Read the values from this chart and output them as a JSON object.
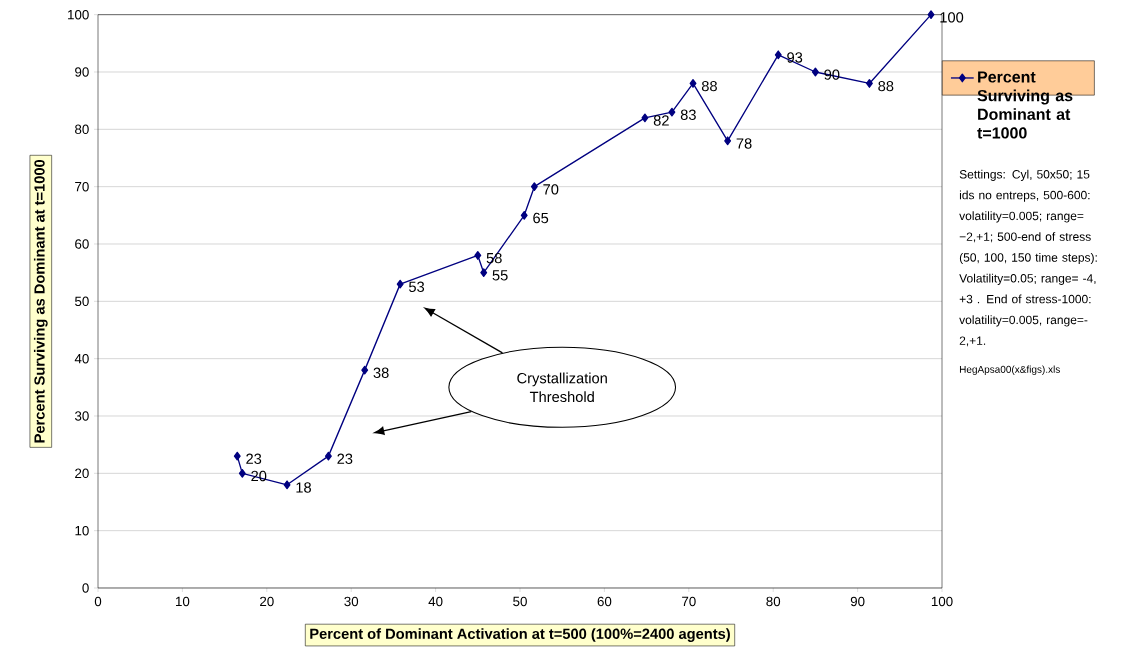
{
  "chart_data": {
    "type": "line",
    "xlabel": "Percent of Dominant Activation at t=500 (100%=2400 agents)",
    "ylabel": "Percent Surviving as  Dominant at t=1000",
    "x": [
      16.5,
      17.1,
      22.4,
      27.3,
      31.6,
      35.8,
      45.0,
      45.7,
      50.5,
      51.7,
      64.8,
      68.0,
      70.5,
      74.6,
      80.6,
      85.0,
      91.4,
      98.7
    ],
    "series": [
      {
        "name": "Percent Surviving as Dominant at t=1000",
        "color": "#000080",
        "values": [
          23,
          20,
          18,
          23,
          38,
          53,
          58,
          55,
          65,
          70,
          82,
          83,
          88,
          78,
          93,
          90,
          88,
          100
        ]
      }
    ],
    "xlim": [
      0,
      100
    ],
    "ylim": [
      0,
      100
    ],
    "xticks": [
      0,
      10,
      20,
      30,
      40,
      50,
      60,
      70,
      80,
      90,
      100
    ],
    "yticks": [
      0,
      10,
      20,
      30,
      40,
      50,
      60,
      70,
      80,
      90,
      100
    ],
    "grid": "y",
    "legend": "right",
    "marker": "diamond",
    "line_style": "solid",
    "data_labels": true,
    "annotations": [
      "Crystallization Threshold",
      "Settings: Cyl, 50x50; 15 ids no entreps, 500-600: volatility=0.005; range= −2,+1; 500-end of stress (50, 100, 150 time steps): Volatility=0.05; range= -4, +3 .  End of stress-1000: volatility=0.005, range=-2,+1.",
      "HegApsa00(x&figs).xls"
    ]
  }
}
